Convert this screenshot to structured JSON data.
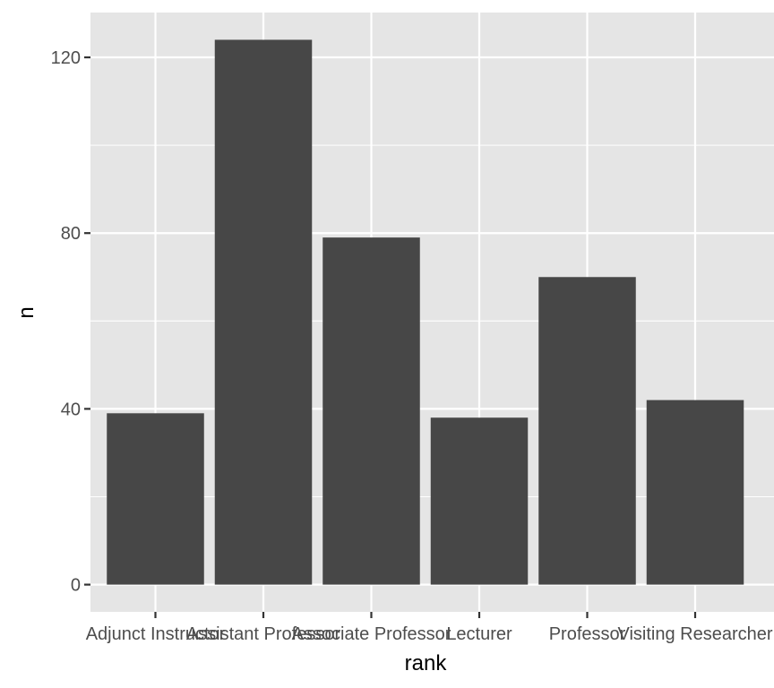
{
  "chart_data": {
    "type": "bar",
    "title": "",
    "xlabel": "rank",
    "ylabel": "n",
    "categories": [
      "Adjunct Instructor",
      "Assistant Professor",
      "Associate Professor",
      "Lecturer",
      "Professor",
      "Visiting Researcher"
    ],
    "values": [
      39,
      124,
      79,
      38,
      70,
      42
    ],
    "ylim": [
      -6.2,
      130.2
    ],
    "yticks": [
      0,
      40,
      80,
      120
    ],
    "ytick_labels": [
      "0",
      "40",
      "80",
      "120"
    ],
    "grid": true,
    "legend": "none",
    "colors": {
      "panel": "#e5e5e5",
      "grid": "#ffffff",
      "bar": "#474747",
      "tick": "#333333",
      "tick_text": "#4d4d4d"
    }
  }
}
